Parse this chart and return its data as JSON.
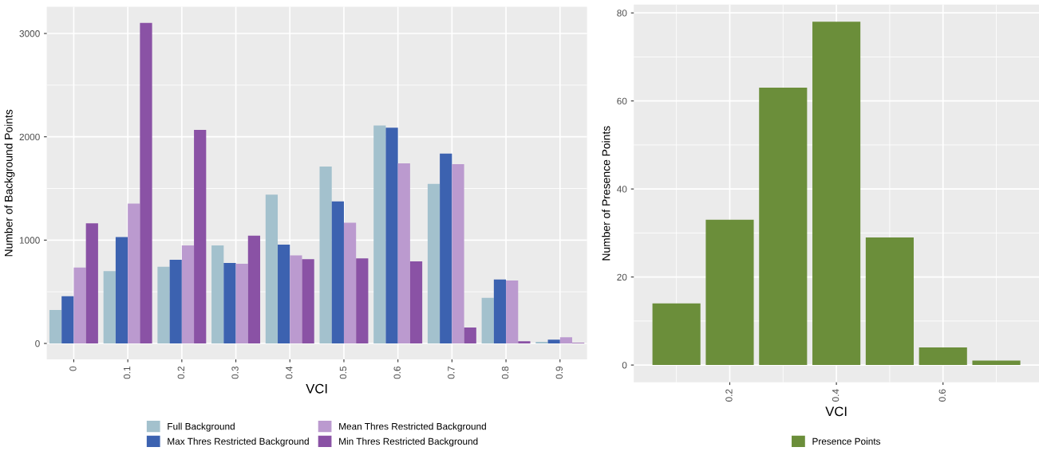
{
  "chart_data": [
    {
      "type": "bar",
      "xlabel": "VCI",
      "ylabel": "Number of Background Points",
      "categories": [
        "0",
        "0.1",
        "0.2",
        "0.3",
        "0.4",
        "0.5",
        "0.6",
        "0.7",
        "0.8",
        "0.9"
      ],
      "series": [
        {
          "name": "Full Background",
          "color": "#a3c1cd",
          "values": [
            324,
            699,
            743,
            949,
            1441,
            1713,
            2110,
            1544,
            441,
            15
          ]
        },
        {
          "name": "Max Thres Restricted Background",
          "color": "#3c62b0",
          "values": [
            456,
            1029,
            809,
            779,
            956,
            1375,
            2088,
            1838,
            618,
            37
          ]
        },
        {
          "name": "Mean Thres Restricted Background",
          "color": "#bb9acf",
          "values": [
            735,
            1353,
            949,
            772,
            853,
            1169,
            1743,
            1735,
            610,
            59
          ]
        },
        {
          "name": "Min Thres Restricted Background",
          "color": "#8a52a5",
          "values": [
            1162,
            3103,
            2066,
            1044,
            816,
            824,
            794,
            154,
            22,
            5
          ]
        }
      ],
      "ylim": [
        -155,
        3258
      ],
      "yticks": [
        0,
        1000,
        2000,
        3000
      ],
      "grid": true,
      "legend": "bottom"
    },
    {
      "type": "histogram",
      "xlabel": "VCI",
      "ylabel": "Number of Presence Points",
      "bins": [
        0.05,
        0.15,
        0.25,
        0.35,
        0.45,
        0.55,
        0.65,
        0.75
      ],
      "series": [
        {
          "name": "Presence Points",
          "color": "#6b8e3a",
          "values": [
            14,
            33,
            63,
            78,
            29,
            4,
            1
          ]
        }
      ],
      "xlim": [
        0.02,
        0.78
      ],
      "xticks": [
        0.2,
        0.4,
        0.6
      ],
      "ylim": [
        -3.9,
        81.9
      ],
      "yticks": [
        0,
        20,
        40,
        60,
        80
      ],
      "grid": true,
      "legend": "bottom"
    }
  ]
}
